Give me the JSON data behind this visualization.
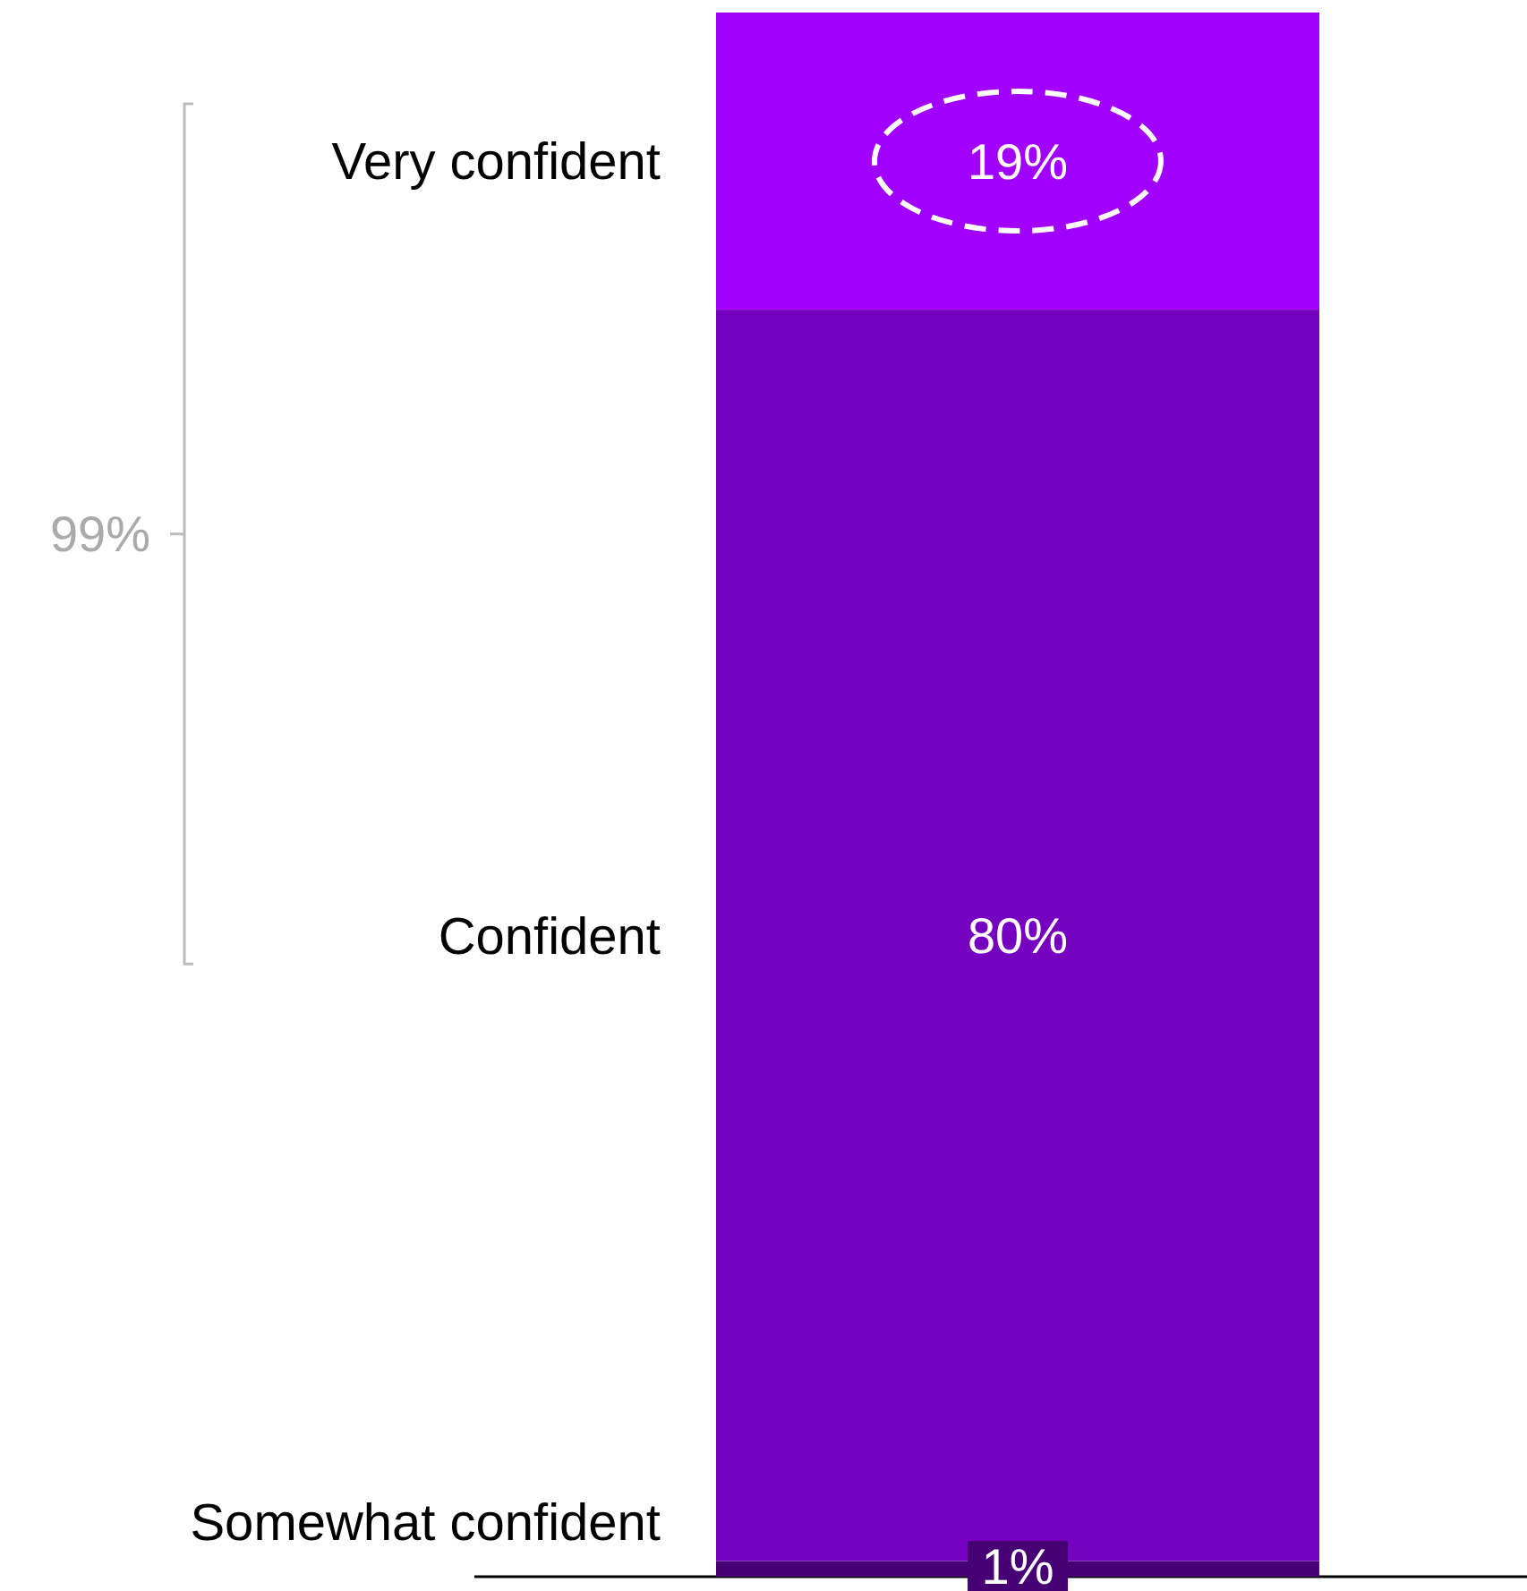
{
  "chart_data": {
    "type": "bar",
    "stacked": true,
    "categories": [
      null
    ],
    "series": [
      {
        "name": "Somewhat confident",
        "color": "#460073",
        "values": [
          1
        ],
        "value_labels": [
          "1%"
        ]
      },
      {
        "name": "Confident",
        "color": "#7500c0",
        "values": [
          80
        ],
        "value_labels": [
          "80%"
        ]
      },
      {
        "name": "Very confident",
        "color": "#a100ff",
        "values": [
          19
        ],
        "value_labels": [
          "19%"
        ]
      }
    ],
    "annotations": [
      "99%"
    ]
  }
}
